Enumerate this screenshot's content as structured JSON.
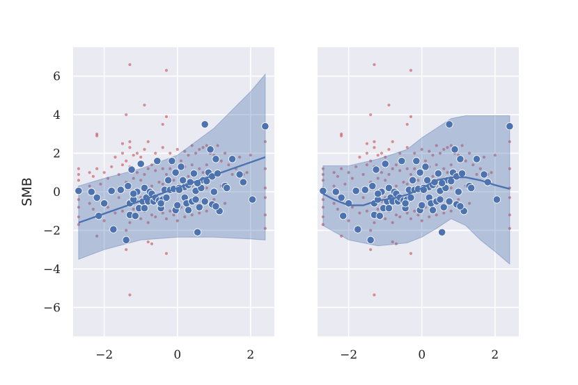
{
  "figure": {
    "ylabel": "SMB"
  },
  "chart_data": [
    {
      "type": "scatter",
      "title": "",
      "xlabel": "",
      "ylabel": "SMB",
      "xlim": [
        -2.85,
        2.65
      ],
      "ylim": [
        -7.5,
        7.5
      ],
      "xticks": [
        -2,
        0,
        2
      ],
      "yticks": [
        -6,
        -4,
        -2,
        0,
        2,
        4,
        6
      ],
      "xtick_labels": [
        "−2",
        "0",
        "2"
      ],
      "ytick_labels": [
        "−6",
        "−4",
        "−2",
        "0",
        "2",
        "4",
        "6"
      ],
      "grid": true,
      "background_color": "#eaeaf2",
      "fit_color": "#4c72b0",
      "band_color": "#4c72b0",
      "small_point_color": "#c44e52",
      "large_point_color": "#4c72b0",
      "fit_line": {
        "x": [
          -2.7,
          2.4
        ],
        "y": [
          -1.6,
          1.8
        ]
      },
      "band_upper": {
        "x": [
          -2.7,
          -2.0,
          -1.0,
          0.0,
          1.0,
          2.0,
          2.4
        ],
        "y": [
          0.3,
          0.7,
          1.2,
          1.9,
          3.3,
          5.2,
          6.1
        ]
      },
      "band_lower": {
        "x": [
          -2.7,
          -2.0,
          -1.0,
          0.0,
          1.0,
          2.0,
          2.4
        ],
        "y": [
          -3.5,
          -3.0,
          -2.5,
          -2.35,
          -2.35,
          -2.45,
          -2.5
        ]
      },
      "series_large": {
        "x": [
          -2.7,
          -2.35,
          -2.2,
          -2.15,
          -2.0,
          -1.8,
          -1.75,
          -1.55,
          -1.4,
          -1.35,
          -1.3,
          -1.3,
          -1.25,
          -1.2,
          -1.15,
          -1.1,
          -1.05,
          -1.0,
          -0.95,
          -0.9,
          -0.85,
          -0.8,
          -0.75,
          -0.7,
          -0.65,
          -0.6,
          -0.55,
          -0.5,
          -0.45,
          -0.45,
          -0.4,
          -0.35,
          -0.3,
          -0.25,
          -0.2,
          -0.15,
          -0.1,
          -0.05,
          0.0,
          0.05,
          0.1,
          0.15,
          0.2,
          0.2,
          0.25,
          0.3,
          0.35,
          0.4,
          0.45,
          0.5,
          0.55,
          0.6,
          0.65,
          0.7,
          0.75,
          0.75,
          0.8,
          0.85,
          0.9,
          0.95,
          1.0,
          1.05,
          1.1,
          1.15,
          1.3,
          1.35,
          1.5,
          1.7,
          1.8,
          2.05,
          2.4,
          -1.2,
          -0.9,
          -0.45,
          0.05,
          0.3,
          0.55,
          0.95,
          1.05,
          -0.05,
          0.5
        ],
        "y": [
          0.05,
          0.0,
          -0.3,
          -1.25,
          -0.6,
          0.05,
          -1.95,
          0.1,
          -2.5,
          0.3,
          -1.2,
          -0.6,
          1.15,
          -0.4,
          -1.25,
          0.0,
          -0.85,
          1.45,
          -0.5,
          0.2,
          -0.3,
          -0.5,
          0.0,
          -0.1,
          -0.5,
          -0.3,
          1.6,
          -0.45,
          -0.6,
          -0.85,
          -0.4,
          0.1,
          -0.3,
          0.6,
          0.1,
          1.6,
          0.15,
          -0.95,
          -0.7,
          0.2,
          1.3,
          0.6,
          0.25,
          -0.3,
          -0.6,
          0.35,
          0.5,
          -0.5,
          0.95,
          0.05,
          -2.1,
          -0.8,
          0.2,
          0.6,
          3.5,
          -0.5,
          0.55,
          1.0,
          2.2,
          0.8,
          0.0,
          1.7,
          0.95,
          -1.0,
          0.3,
          0.2,
          1.7,
          0.9,
          0.5,
          -0.4,
          3.4,
          -0.1,
          -0.85,
          -0.6,
          0.1,
          -0.95,
          0.45,
          -0.65,
          -0.75,
          1.0,
          -0.4
        ]
      }
    },
    {
      "type": "scatter",
      "title": "",
      "xlabel": "",
      "ylabel": "",
      "xlim": [
        -2.85,
        2.65
      ],
      "ylim": [
        -7.5,
        7.5
      ],
      "xticks": [
        -2,
        0,
        2
      ],
      "xtick_labels": [
        "−2",
        "0",
        "2"
      ],
      "grid": true,
      "background_color": "#eaeaf2",
      "fit_color": "#4c72b0",
      "band_color": "#4c72b0",
      "small_point_color": "#c44e52",
      "large_point_color": "#4c72b0",
      "fit_line": {
        "x": [
          -2.7,
          -2.4,
          -2.0,
          -1.6,
          -1.2,
          -0.8,
          -0.4,
          0.0,
          0.4,
          0.8,
          1.2,
          1.6,
          2.0,
          2.4
        ],
        "y": [
          -0.1,
          -0.4,
          -0.7,
          -0.7,
          -0.45,
          -0.35,
          -0.15,
          0.2,
          0.6,
          0.75,
          0.75,
          0.6,
          0.35,
          0.15
        ]
      },
      "band_upper": {
        "x": [
          -2.7,
          -2.0,
          -1.2,
          -0.4,
          0.0,
          0.4,
          0.8,
          1.2,
          1.6,
          2.0,
          2.4
        ],
        "y": [
          1.35,
          1.35,
          1.7,
          2.2,
          2.8,
          3.3,
          3.8,
          3.95,
          3.95,
          3.95,
          3.95
        ]
      },
      "band_lower": {
        "x": [
          -2.7,
          -2.0,
          -1.2,
          -0.4,
          0.0,
          0.4,
          0.8,
          1.2,
          1.6,
          2.0,
          2.4
        ],
        "y": [
          -1.75,
          -2.5,
          -2.8,
          -2.65,
          -2.35,
          -1.9,
          -1.4,
          -1.75,
          -2.5,
          -3.1,
          -3.75
        ]
      },
      "series_large": {
        "x": [
          -2.7,
          -2.35,
          -2.2,
          -2.15,
          -2.0,
          -1.8,
          -1.75,
          -1.55,
          -1.4,
          -1.35,
          -1.3,
          -1.3,
          -1.25,
          -1.2,
          -1.15,
          -1.1,
          -1.05,
          -1.0,
          -0.95,
          -0.9,
          -0.85,
          -0.8,
          -0.75,
          -0.7,
          -0.65,
          -0.6,
          -0.55,
          -0.5,
          -0.45,
          -0.45,
          -0.4,
          -0.35,
          -0.3,
          -0.25,
          -0.2,
          -0.15,
          -0.1,
          -0.05,
          0.0,
          0.05,
          0.1,
          0.15,
          0.2,
          0.2,
          0.25,
          0.3,
          0.35,
          0.4,
          0.45,
          0.5,
          0.55,
          0.6,
          0.65,
          0.7,
          0.75,
          0.75,
          0.8,
          0.85,
          0.9,
          0.95,
          1.0,
          1.05,
          1.1,
          1.15,
          1.3,
          1.35,
          1.5,
          1.7,
          1.8,
          2.05,
          2.4,
          -1.2,
          -0.9,
          -0.45,
          0.05,
          0.3,
          0.55,
          0.95,
          1.05,
          -0.05,
          0.5
        ],
        "y": [
          0.05,
          0.0,
          -0.3,
          -1.25,
          -0.6,
          0.05,
          -1.95,
          0.1,
          -2.5,
          0.3,
          -1.2,
          -0.6,
          1.15,
          -0.4,
          -1.25,
          0.0,
          -0.85,
          1.45,
          -0.5,
          0.2,
          -0.3,
          -0.5,
          0.0,
          -0.1,
          -0.5,
          -0.3,
          1.6,
          -0.45,
          -0.6,
          -0.85,
          -0.4,
          0.1,
          -0.3,
          0.6,
          0.1,
          1.6,
          0.15,
          -0.95,
          -0.7,
          0.2,
          1.3,
          0.6,
          0.25,
          -0.3,
          -0.6,
          0.35,
          0.5,
          -0.5,
          0.95,
          0.05,
          -2.1,
          -0.8,
          0.2,
          0.6,
          3.5,
          -0.5,
          0.55,
          1.0,
          2.2,
          0.8,
          0.0,
          1.7,
          0.95,
          -1.0,
          0.3,
          0.2,
          1.7,
          0.9,
          0.5,
          -0.4,
          3.4,
          -0.1,
          -0.85,
          -0.6,
          0.1,
          -0.95,
          0.45,
          -0.65,
          -0.75,
          1.0,
          -0.4
        ]
      }
    }
  ],
  "small_points": {
    "x": [
      -2.7,
      -2.7,
      -2.7,
      -2.7,
      -2.7,
      -2.7,
      -2.7,
      -2.7,
      -2.4,
      -2.4,
      -2.4,
      -2.3,
      -2.3,
      -2.2,
      -2.2,
      -2.2,
      -2.1,
      -2.0,
      -2.0,
      -1.9,
      -1.9,
      -1.8,
      -1.8,
      -1.7,
      -1.7,
      -1.6,
      -1.6,
      -1.5,
      -1.5,
      -1.5,
      -1.4,
      -1.4,
      -1.4,
      -1.3,
      -1.3,
      -1.3,
      -1.3,
      -1.2,
      -1.2,
      -1.2,
      -1.1,
      -1.1,
      -1.1,
      -1.0,
      -1.0,
      -1.0,
      -1.0,
      -0.9,
      -0.9,
      -0.9,
      -0.8,
      -0.8,
      -0.8,
      -0.8,
      -0.7,
      -0.7,
      -0.7,
      -0.6,
      -0.6,
      -0.6,
      -0.6,
      -0.5,
      -0.5,
      -0.5,
      -0.4,
      -0.4,
      -0.4,
      -0.4,
      -0.3,
      -0.3,
      -0.3,
      -0.2,
      -0.2,
      -0.2,
      -0.2,
      -0.1,
      -0.1,
      -0.1,
      0.0,
      0.0,
      0.0,
      0.0,
      0.1,
      0.1,
      0.1,
      0.2,
      0.2,
      0.2,
      0.2,
      0.3,
      0.3,
      0.3,
      0.4,
      0.4,
      0.4,
      0.4,
      0.5,
      0.5,
      0.5,
      0.6,
      0.6,
      0.6,
      0.6,
      0.7,
      0.7,
      0.7,
      0.8,
      0.8,
      0.8,
      0.8,
      0.9,
      0.9,
      0.9,
      1.0,
      1.0,
      1.0,
      1.1,
      1.1,
      1.1,
      1.2,
      1.2,
      1.3,
      1.3,
      1.4,
      1.5,
      1.6,
      1.7,
      1.8,
      1.9,
      2.0,
      2.0,
      2.4,
      2.4,
      2.4,
      2.4,
      2.4,
      2.4,
      -1.3,
      -1.3,
      -0.3,
      -1.4,
      -1.4,
      -0.9,
      -0.3,
      -2.2,
      -0.8,
      -1.5,
      -0.7,
      -0.4,
      -1.3,
      -0.6
    ],
    "y": [
      1.2,
      0.9,
      0.6,
      0.2,
      -0.4,
      -0.8,
      -1.3,
      -1.7,
      1.0,
      0.3,
      -0.6,
      0.8,
      -0.9,
      3.0,
      1.2,
      -2.3,
      0.4,
      1.0,
      -1.5,
      0.7,
      -0.8,
      1.3,
      0.0,
      1.8,
      -1.1,
      0.9,
      -0.3,
      2.5,
      1.4,
      -1.0,
      1.6,
      0.5,
      -2.0,
      2.3,
      1.3,
      0.2,
      -1.6,
      1.9,
      0.7,
      -0.9,
      2.0,
      1.0,
      -0.5,
      1.8,
      0.6,
      -0.3,
      -1.4,
      2.2,
      0.9,
      -1.0,
      2.6,
      1.2,
      0.1,
      -1.6,
      1.4,
      0.3,
      -1.2,
      2.0,
      1.1,
      -0.2,
      -1.3,
      1.7,
      0.5,
      -0.9,
      2.3,
      1.2,
      0.4,
      -1.1,
      3.9,
      0.9,
      -1.4,
      2.0,
      1.2,
      0.1,
      -1.0,
      1.5,
      0.6,
      -1.2,
      2.2,
      1.0,
      0.0,
      -1.5,
      1.6,
      0.5,
      -0.8,
      2.1,
      1.3,
      0.2,
      -1.3,
      1.9,
      0.8,
      -0.6,
      2.4,
      1.4,
      0.3,
      -1.2,
      2.0,
      0.9,
      -0.5,
      2.2,
      1.2,
      0.1,
      -1.1,
      2.3,
      1.0,
      -0.6,
      2.4,
      1.4,
      0.2,
      -1.0,
      2.0,
      0.8,
      -0.7,
      1.9,
      0.9,
      -0.4,
      2.4,
      1.0,
      -0.9,
      1.6,
      0.3,
      2.0,
      -0.6,
      1.4,
      0.9,
      1.2,
      1.8,
      0.9,
      1.0,
      1.9,
      -0.3,
      2.6,
      1.2,
      0.2,
      -0.3,
      -1.2,
      -1.9,
      6.6,
      -5.35,
      6.3,
      4.0,
      -3.0,
      4.5,
      -3.2,
      2.9,
      -2.6,
      2.0,
      -2.7,
      3.5,
      2.6,
      1.6
    ]
  }
}
